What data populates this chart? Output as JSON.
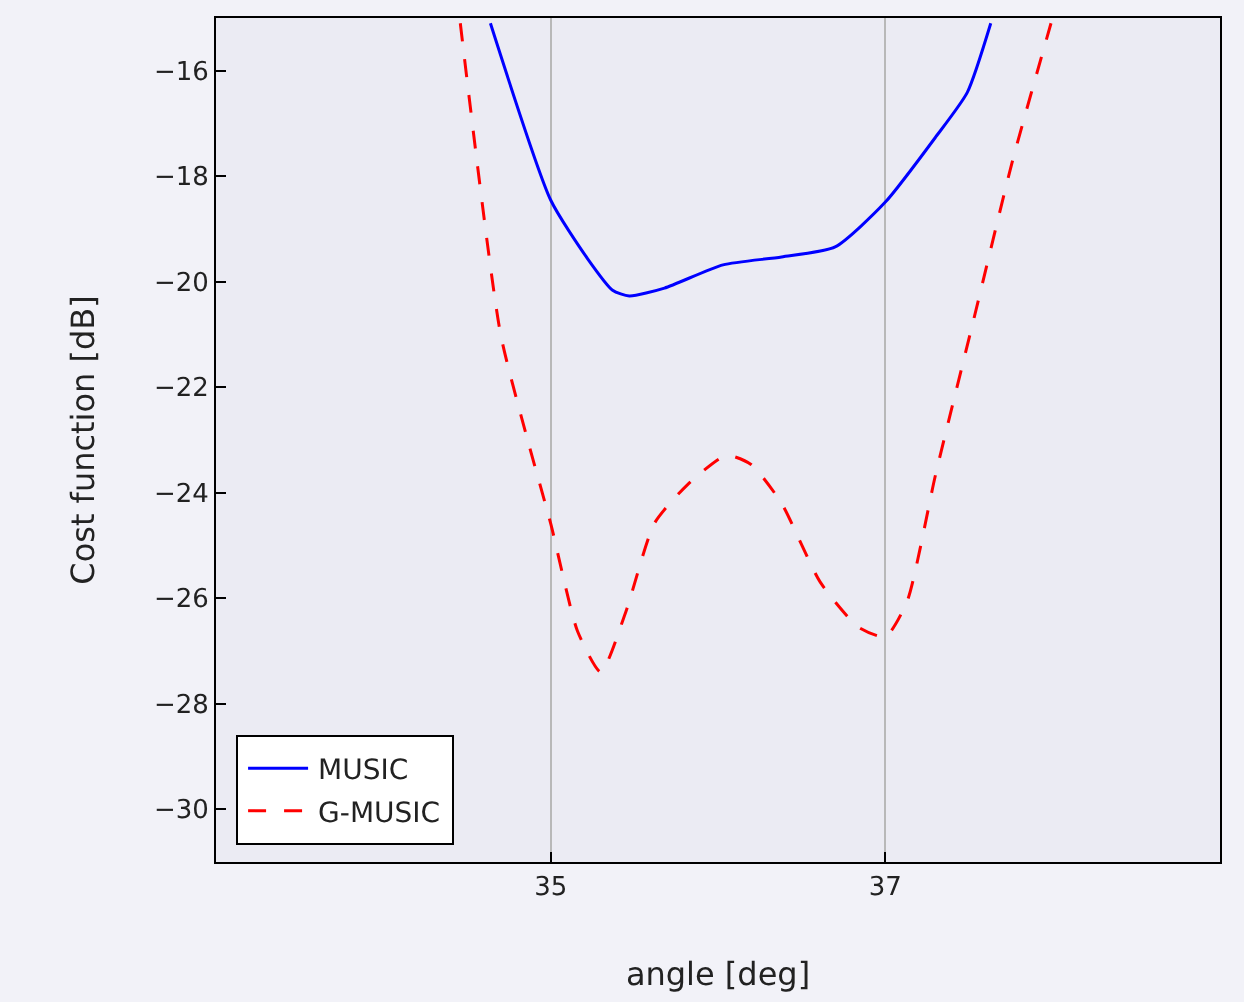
{
  "chart_data": {
    "type": "line",
    "xlabel": "angle [deg]",
    "ylabel": "Cost function [dB]",
    "xlim": [
      33,
      39
    ],
    "ylim": [
      -31,
      -15
    ],
    "xticks": [
      35,
      37
    ],
    "yticks": [
      -30,
      -28,
      -26,
      -24,
      -22,
      -20,
      -18,
      -16
    ],
    "grid": "x",
    "legend": "bottom left",
    "marker": "none",
    "series": [
      {
        "name": "MUSIC",
        "color": "#0000ff",
        "line_style": "solid",
        "x": [
          34.64,
          35.0,
          35.22,
          35.37,
          35.47,
          35.68,
          36.03,
          36.38,
          36.7,
          37.0,
          37.3,
          37.49,
          37.63
        ],
        "values": [
          -15.1,
          -18.45,
          -19.56,
          -20.16,
          -20.27,
          -20.12,
          -19.68,
          -19.53,
          -19.34,
          -18.49,
          -17.26,
          -16.41,
          -15.1
        ]
      },
      {
        "name": "G-MUSIC",
        "color": "#ff0000",
        "line_style": "dashed",
        "x": [
          34.46,
          34.7,
          34.87,
          35.0,
          35.16,
          35.3,
          35.45,
          35.62,
          35.82,
          36.05,
          36.2,
          36.38,
          36.61,
          36.84,
          37.0,
          37.13,
          37.3,
          37.53,
          37.76,
          37.99
        ],
        "values": [
          -15.1,
          -20.98,
          -23.09,
          -24.58,
          -26.62,
          -27.4,
          -26.25,
          -24.58,
          -23.84,
          -23.29,
          -23.47,
          -24.2,
          -25.69,
          -26.55,
          -26.73,
          -26.06,
          -23.66,
          -20.69,
          -17.71,
          -15.1
        ]
      }
    ]
  }
}
